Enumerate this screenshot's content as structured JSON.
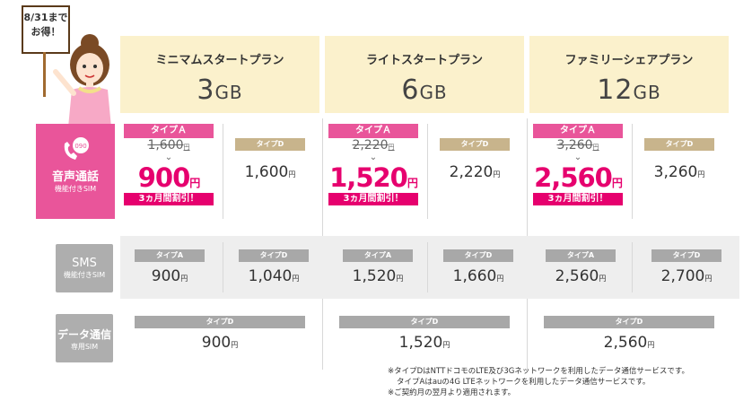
{
  "promo_sign": {
    "line1": "8/31まで",
    "line2": "お得！"
  },
  "plans": [
    {
      "name": "ミニマムスタートプラン",
      "size_num": "3",
      "size_unit": "GB"
    },
    {
      "name": "ライトスタートプラン",
      "size_num": "6",
      "size_unit": "GB"
    },
    {
      "name": "ファミリーシェアプラン",
      "size_num": "12",
      "size_unit": "GB"
    }
  ],
  "rows": {
    "voice": {
      "main": "音声通話",
      "sub": "機能付きSIM",
      "badge": "090"
    },
    "sms": {
      "main": "SMS",
      "sub": "機能付きSIM"
    },
    "data": {
      "main": "データ通信",
      "sub": "専用SIM"
    }
  },
  "labels": {
    "type_a": "タイプＡ",
    "type_a_small": "タイプA",
    "type_d": "タイプD",
    "yen": "円",
    "discount": "3ヵ月間割引！",
    "chevron": "⌄"
  },
  "voice_prices": [
    {
      "old": "1,600",
      "new": "900",
      "type_d": "1,600"
    },
    {
      "old": "2,220",
      "new": "1,520",
      "type_d": "2,220"
    },
    {
      "old": "3,260",
      "new": "2,560",
      "type_d": "3,260"
    }
  ],
  "sms_prices": [
    {
      "type_a": "900",
      "type_d": "1,040"
    },
    {
      "type_a": "1,520",
      "type_d": "1,660"
    },
    {
      "type_a": "2,560",
      "type_d": "2,700"
    }
  ],
  "data_prices": [
    "900",
    "1,520",
    "2,560"
  ],
  "notes": [
    "※タイプDはNTTドコモのLTE及び3Gネットワークを利用したデータ通信サービスです。",
    "タイプAはauの4G LTEネットワークを利用したデータ通信サービスです。",
    "※ご契約月の翌月より適用されます。"
  ],
  "colors": {
    "pink": "#e9559a",
    "magenta": "#e6006e",
    "cream": "#fbf1cc",
    "gray": "#aeaeae",
    "beige": "#c8b48c"
  }
}
